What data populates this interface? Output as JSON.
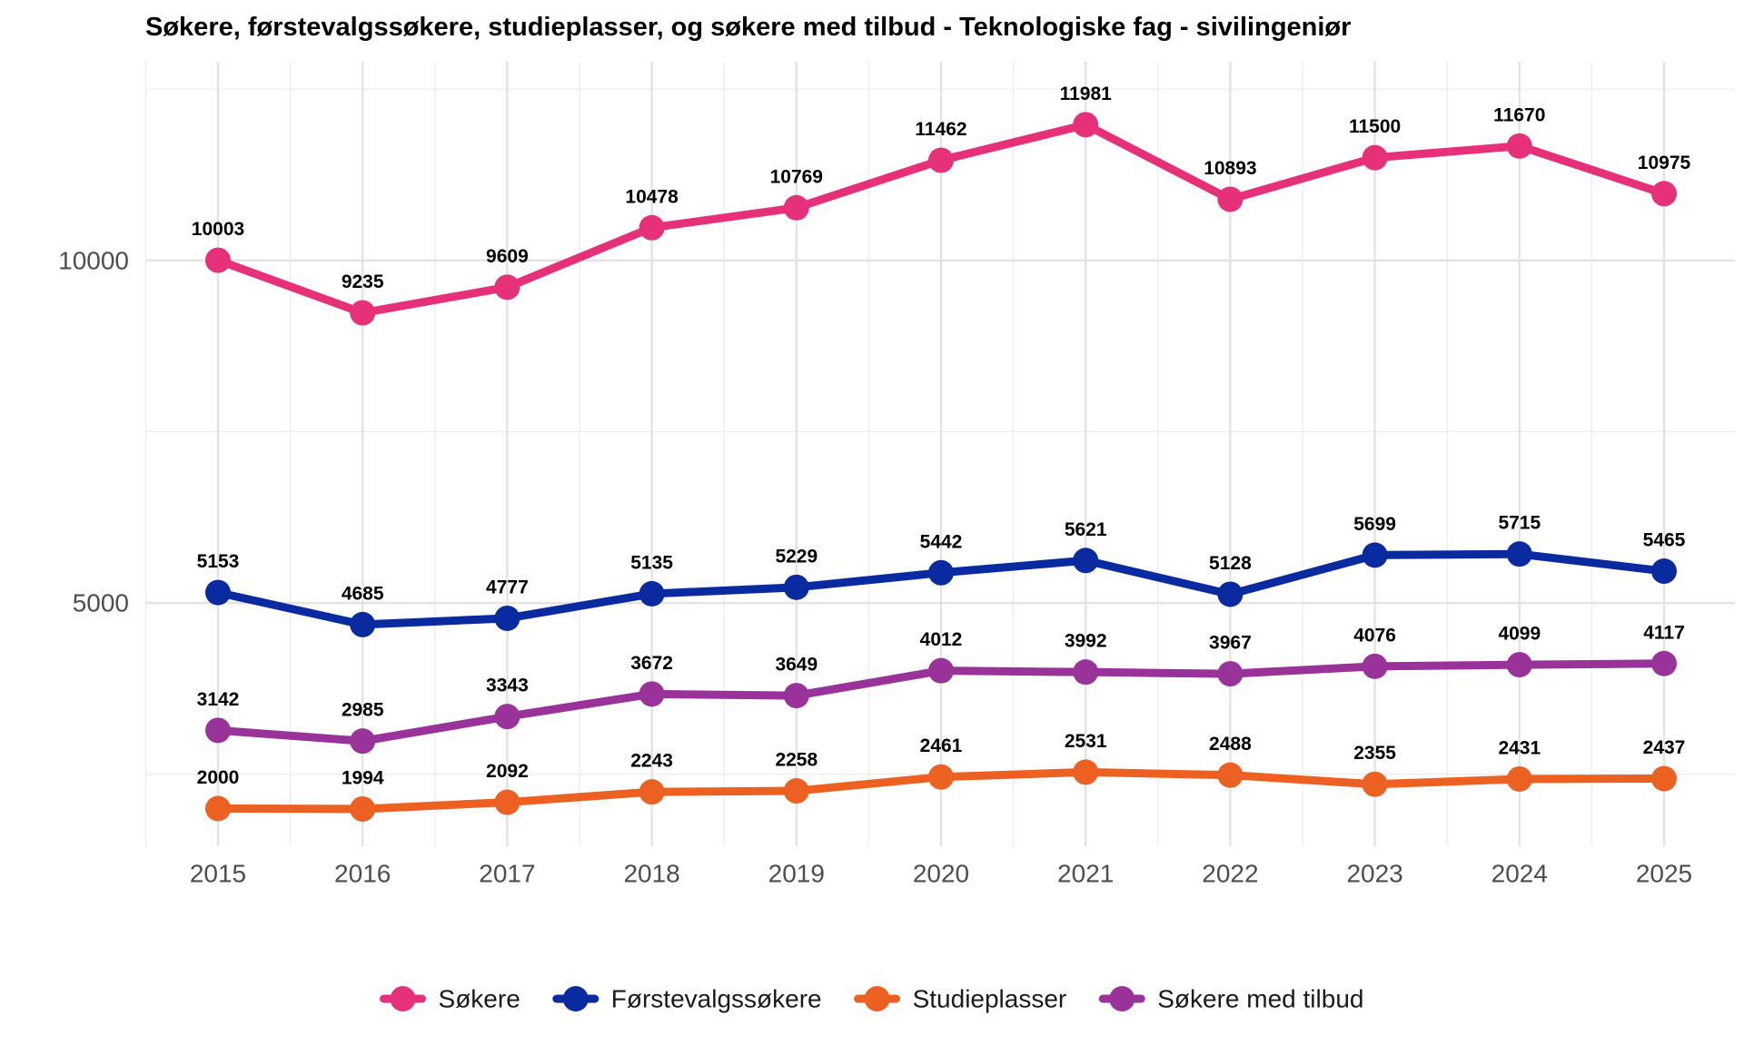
{
  "chart_data": {
    "type": "line",
    "title": "Søkere, førstevalgssøkere, studieplasser, og søkere med tilbud - Teknologiske fag - sivilingeniør",
    "xlabel": "",
    "ylabel": "",
    "x": [
      2015,
      2016,
      2017,
      2018,
      2019,
      2020,
      2021,
      2022,
      2023,
      2024,
      2025
    ],
    "x_tick_labels": [
      "2015",
      "2016",
      "2017",
      "2018",
      "2019",
      "2020",
      "2021",
      "2022",
      "2023",
      "2024",
      "2025"
    ],
    "y_ticks": [
      5000,
      10000
    ],
    "y_tick_labels": [
      "5000",
      "10000"
    ],
    "ylim": [
      1450,
      12900
    ],
    "grid": true,
    "legend_position": "bottom",
    "series": [
      {
        "name": "Søkere",
        "color": "#E7307A",
        "values": [
          10003,
          9235,
          9609,
          10478,
          10769,
          11462,
          11981,
          10893,
          11500,
          11670,
          10975
        ]
      },
      {
        "name": "Førstevalgssøkere",
        "color": "#0A2BA0",
        "values": [
          5153,
          4685,
          4777,
          5135,
          5229,
          5442,
          5621,
          5128,
          5699,
          5715,
          5465
        ]
      },
      {
        "name": "Studieplasser",
        "color": "#EC6122",
        "values": [
          2000,
          1994,
          2092,
          2243,
          2258,
          2461,
          2531,
          2488,
          2355,
          2431,
          2437
        ]
      },
      {
        "name": "Søkere med tilbud",
        "color": "#993399",
        "values": [
          3142,
          2985,
          3343,
          3672,
          3649,
          4012,
          3992,
          3967,
          4076,
          4099,
          4117
        ]
      }
    ]
  }
}
